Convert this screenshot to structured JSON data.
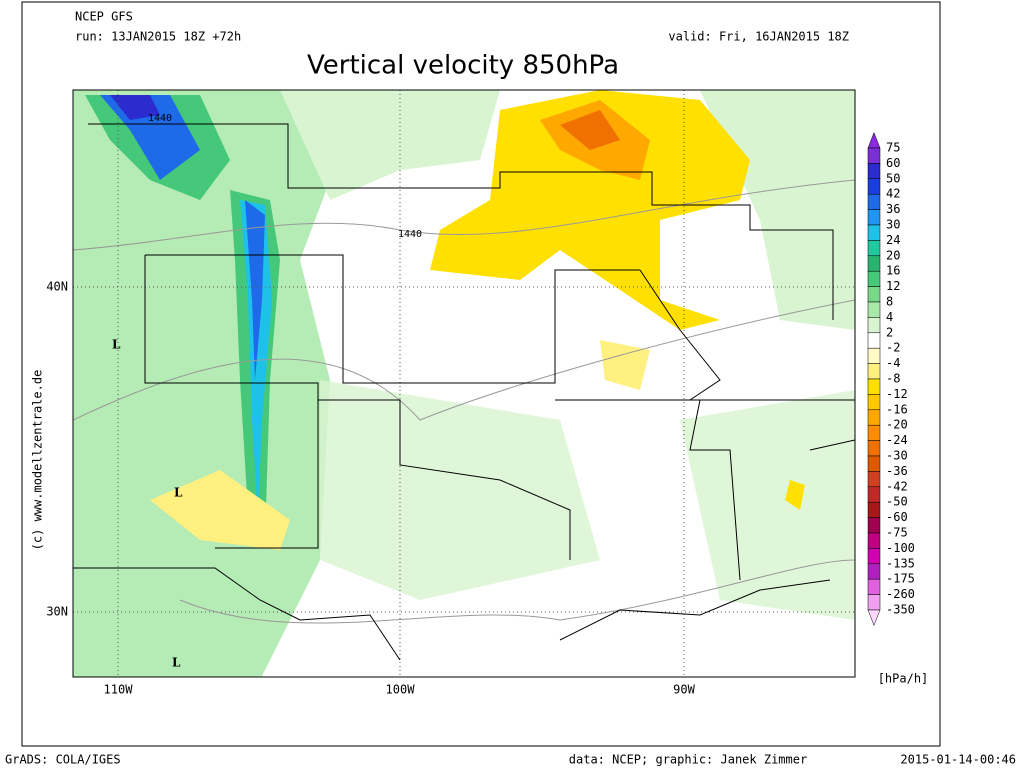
{
  "header": {
    "model": "NCEP GFS",
    "run": "run: 13JAN2015 18Z +72h",
    "valid": "valid: Fri, 16JAN2015 18Z",
    "title": "Vertical velocity 850hPa"
  },
  "map": {
    "lat_labels": [
      "40N",
      "30N"
    ],
    "lon_labels": [
      "110W",
      "100W",
      "90W"
    ],
    "contour_labels": [
      "1440",
      "1440"
    ],
    "low_markers": [
      "L",
      "L",
      "L"
    ],
    "watermark": "(c) www.modellzentrale.de"
  },
  "colorbar": {
    "levels": [
      75,
      60,
      50,
      42,
      36,
      30,
      24,
      20,
      16,
      12,
      8,
      4,
      2,
      -2,
      -4,
      -8,
      -12,
      -16,
      -20,
      -24,
      -30,
      -36,
      -42,
      -50,
      -60,
      -75,
      -100,
      -135,
      -175,
      -260,
      -350
    ],
    "colors": [
      "#8a2be2",
      "#7b2fd6",
      "#2b2bd0",
      "#1a3fe0",
      "#1e6ae8",
      "#2196f0",
      "#1ec2e8",
      "#20c8a0",
      "#28b46e",
      "#46c87a",
      "#78d88a",
      "#a8e8a8",
      "#d8f4d0",
      "#ffffff",
      "#fffcc8",
      "#fff080",
      "#ffe000",
      "#ffc800",
      "#ffa800",
      "#ff8c00",
      "#f07000",
      "#e05800",
      "#d04020",
      "#c02828",
      "#a81818",
      "#a00050",
      "#c00080",
      "#d000b0",
      "#b020c0",
      "#e060e0",
      "#f0a0f0",
      "#ffd8ff"
    ],
    "unit": "[hPa/h]"
  },
  "footer": {
    "left": "GrADS: COLA/IGES",
    "center": "data: NCEP; graphic: Janek Zimmer",
    "right": "2015-01-14-00:46"
  }
}
